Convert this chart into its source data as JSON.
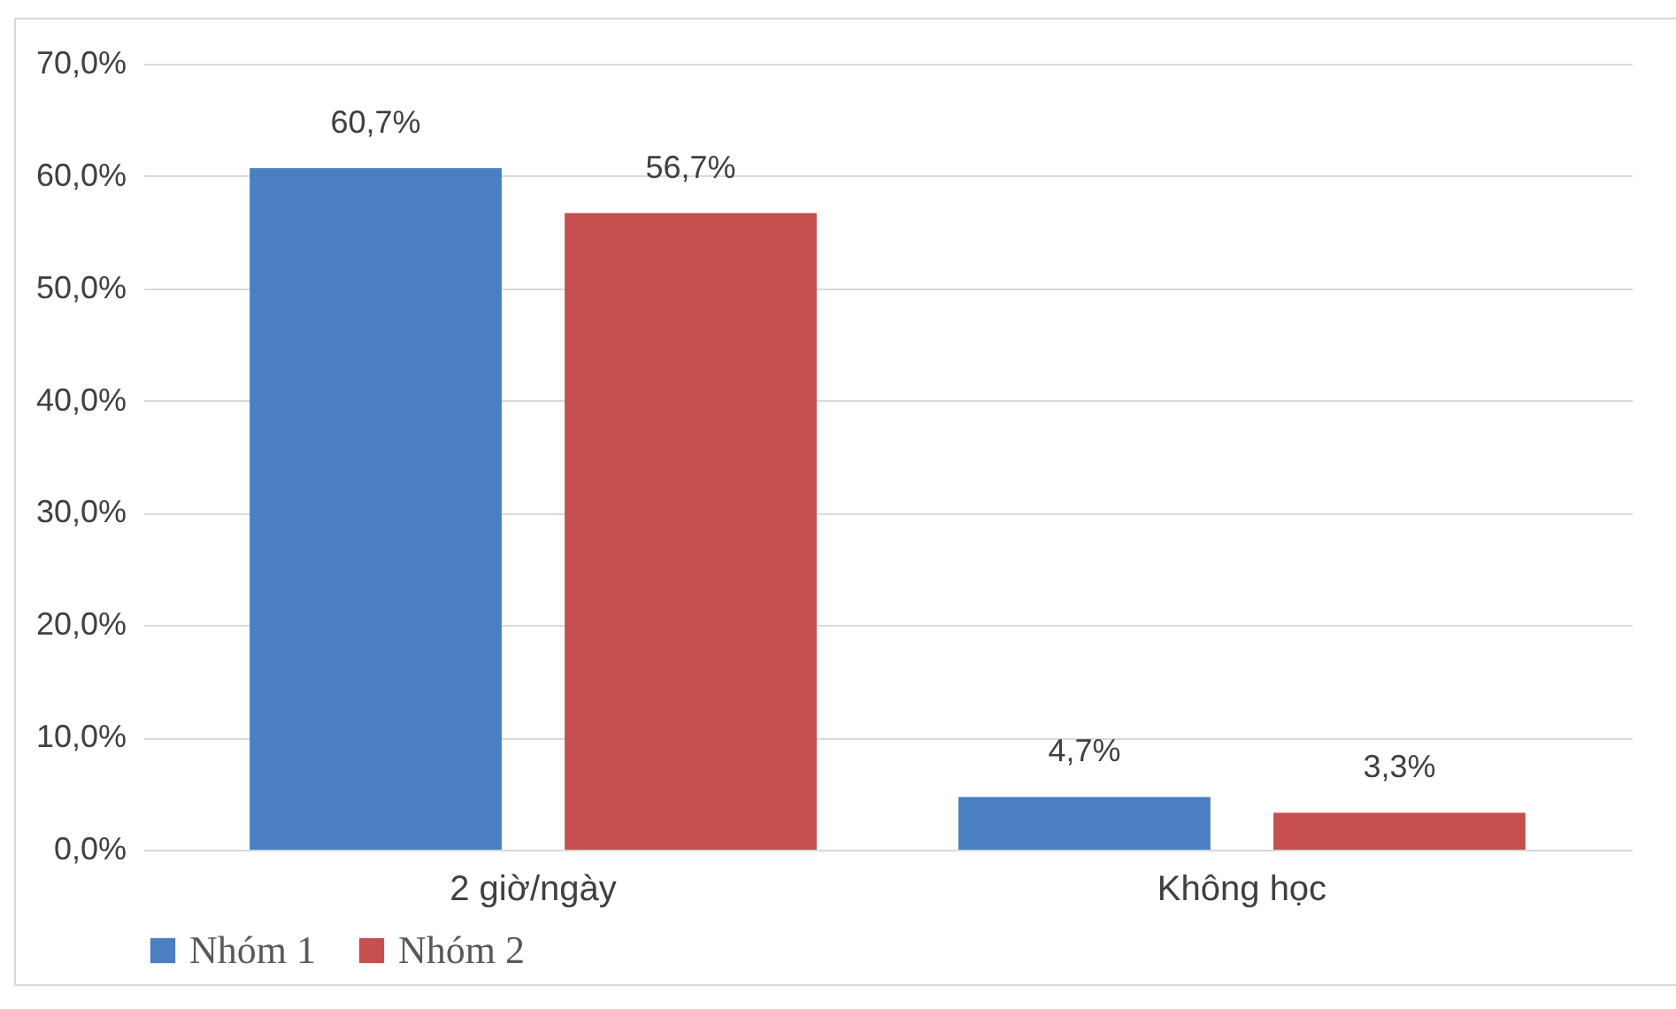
{
  "chart_data": {
    "type": "bar",
    "categories": [
      "2 giờ/ngày",
      "Không học"
    ],
    "series": [
      {
        "name": "Nhóm 1",
        "color": "#4a7fc1",
        "values": [
          60.7,
          4.7
        ],
        "value_labels": [
          "60,7%",
          "4,7%"
        ]
      },
      {
        "name": "Nhóm 2",
        "color": "#c5504d",
        "values": [
          56.7,
          3.3
        ],
        "value_labels": [
          "56,7%",
          "3,3%"
        ]
      }
    ],
    "ylim": [
      0,
      70
    ],
    "yticks": [
      {
        "value": 0,
        "label": "0,0%"
      },
      {
        "value": 10,
        "label": "10,0%"
      },
      {
        "value": 20,
        "label": "20,0%"
      },
      {
        "value": 30,
        "label": "30,0%"
      },
      {
        "value": 40,
        "label": "40,0%"
      },
      {
        "value": 50,
        "label": "50,0%"
      },
      {
        "value": 60,
        "label": "60,0%"
      },
      {
        "value": 70,
        "label": "70,0%"
      }
    ],
    "grid": "y",
    "legend": "bottom"
  }
}
